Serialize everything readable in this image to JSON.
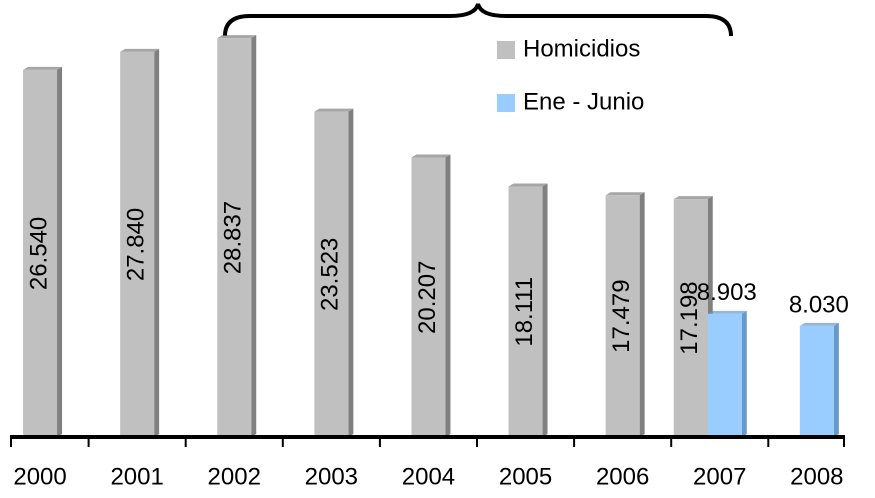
{
  "chart_data": {
    "type": "bar",
    "categories": [
      "2000",
      "2001",
      "2002",
      "2003",
      "2004",
      "2005",
      "2006",
      "2007",
      "2008"
    ],
    "series": [
      {
        "name": "Homicidios",
        "color": "#c0c0c0",
        "values": [
          26540,
          27840,
          28837,
          23523,
          20207,
          18111,
          17479,
          17198,
          null
        ],
        "value_labels": [
          "26.540",
          "27.840",
          "28.837",
          "23.523",
          "20.207",
          "18.111",
          "17.479",
          "17.198",
          null
        ]
      },
      {
        "name": "Ene - Junio",
        "color": "#99ccff",
        "values": [
          null,
          null,
          null,
          null,
          null,
          null,
          null,
          8903,
          8030
        ],
        "value_labels": [
          null,
          null,
          null,
          null,
          null,
          null,
          null,
          "8.903",
          "8.030"
        ]
      }
    ],
    "ylim": [
      0,
      30000
    ]
  }
}
